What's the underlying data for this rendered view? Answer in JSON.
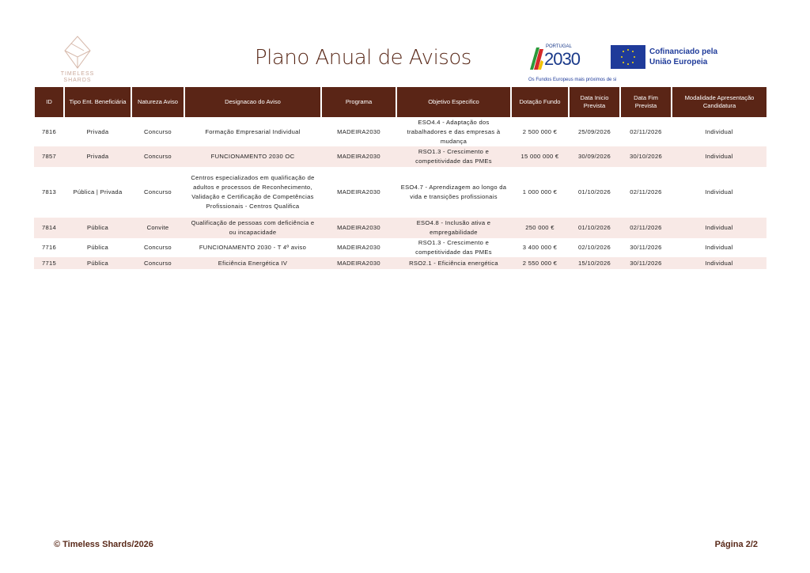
{
  "header": {
    "logo_text": "TIMELESS SHARDS",
    "title": "Plano Anual de Avisos",
    "portugal_logo": "PORTUGAL 2030",
    "eu_logo": "Cofinanciado pela União Europeia",
    "eu_line1": "Cofinanciado pela",
    "eu_line2": "União Europeia",
    "tagline": "Os Fundos Europeus mais próximos de si",
    "colors": {
      "header_bg": "#5a2516",
      "alt_row": "#f8e9e6"
    }
  },
  "table": {
    "columns": [
      "ID",
      "Tipo Ent. Beneficiária",
      "Natureza Aviso",
      "Designacao do Aviso",
      "Programa",
      "Objetivo Especifico",
      "Dotação Fundo",
      "Data Inicio Prevista",
      "Data Fim Prevista",
      "Modalidade Apresentação Candidatura"
    ],
    "rows": [
      [
        "7816",
        "Privada",
        "Concurso",
        "Formação Empresarial Individual",
        "MADEIRA2030",
        "ESO4.4 - Adaptação dos trabalhadores e das empresas à mudança",
        "2 500 000 €",
        "25/09/2026",
        "02/11/2026",
        "Individual"
      ],
      [
        "7857",
        "Privada",
        "Concurso",
        "FUNCIONAMENTO 2030 OC",
        "MADEIRA2030",
        "RSO1.3 - Crescimento e competitividade das PMEs",
        "15 000 000 €",
        "30/09/2026",
        "30/10/2026",
        "Individual"
      ],
      [
        "7813",
        "Pública | Privada",
        "Concurso",
        "Centros especializados em qualificação de adultos e processos de Reconhecimento, Validação e Certificação de Competências Profissionais - Centros Qualifica",
        "MADEIRA2030",
        "ESO4.7 - Aprendizagem ao longo da vida e transições profissionais",
        "1 000 000 €",
        "01/10/2026",
        "02/11/2026",
        "Individual"
      ],
      [
        "7814",
        "Pública",
        "Convite",
        "Qualificação de pessoas com deficiência e ou incapacidade",
        "MADEIRA2030",
        "ESO4.8 - Inclusão ativa e empregabilidade",
        "250 000 €",
        "01/10/2026",
        "02/11/2026",
        "Individual"
      ],
      [
        "7716",
        "Pública",
        "Concurso",
        "FUNCIONAMENTO 2030 - T 4º aviso",
        "MADEIRA2030",
        "RSO1.3 - Crescimento e competitividade das PMEs",
        "3 400 000 €",
        "02/10/2026",
        "30/11/2026",
        "Individual"
      ],
      [
        "7715",
        "Pública",
        "Concurso",
        "Eficiência Energética IV",
        "MADEIRA2030",
        "RSO2.1 - Eficiência energética",
        "2 550 000 €",
        "15/10/2026",
        "30/11/2026",
        "Individual"
      ]
    ]
  },
  "footer": {
    "copyright": "© Timeless Shards/2026",
    "page": "Página 2/2"
  }
}
